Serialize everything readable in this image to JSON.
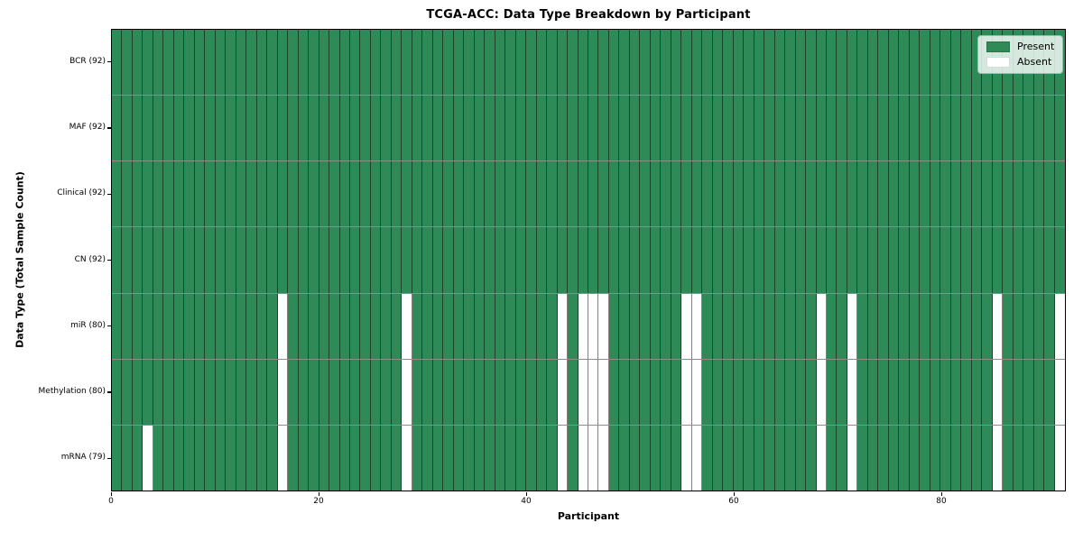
{
  "chart_data": {
    "type": "heatmap",
    "title": "TCGA-ACC: Data Type Breakdown by Participant",
    "xlabel": "Participant",
    "ylabel": "Data Type (Total Sample Count)",
    "n_participants": 92,
    "x_ticks": [
      0,
      20,
      40,
      60,
      80
    ],
    "x_range": [
      0,
      92
    ],
    "grid": "cell-borders",
    "legend_position": "upper-right",
    "rows": [
      {
        "label": "BCR (92)",
        "present_count": 92,
        "absent_participants": []
      },
      {
        "label": "MAF (92)",
        "present_count": 92,
        "absent_participants": []
      },
      {
        "label": "Clinical (92)",
        "present_count": 92,
        "absent_participants": []
      },
      {
        "label": "CN (92)",
        "present_count": 92,
        "absent_participants": []
      },
      {
        "label": "miR (80)",
        "present_count": 80,
        "absent_participants": [
          16,
          28,
          43,
          45,
          46,
          47,
          55,
          56,
          68,
          71,
          85,
          91
        ]
      },
      {
        "label": "Methylation (80)",
        "present_count": 80,
        "absent_participants": [
          16,
          28,
          43,
          45,
          46,
          47,
          55,
          56,
          68,
          71,
          85,
          91
        ]
      },
      {
        "label": "mRNA (79)",
        "present_count": 79,
        "absent_participants": [
          3,
          16,
          28,
          43,
          45,
          46,
          47,
          55,
          56,
          68,
          71,
          85,
          91
        ]
      }
    ],
    "legend": [
      {
        "label": "Present",
        "color": "#2e8b57"
      },
      {
        "label": "Absent",
        "color": "#ffffff"
      }
    ],
    "colors": {
      "present": "#2e8b57",
      "absent": "#ffffff"
    }
  }
}
